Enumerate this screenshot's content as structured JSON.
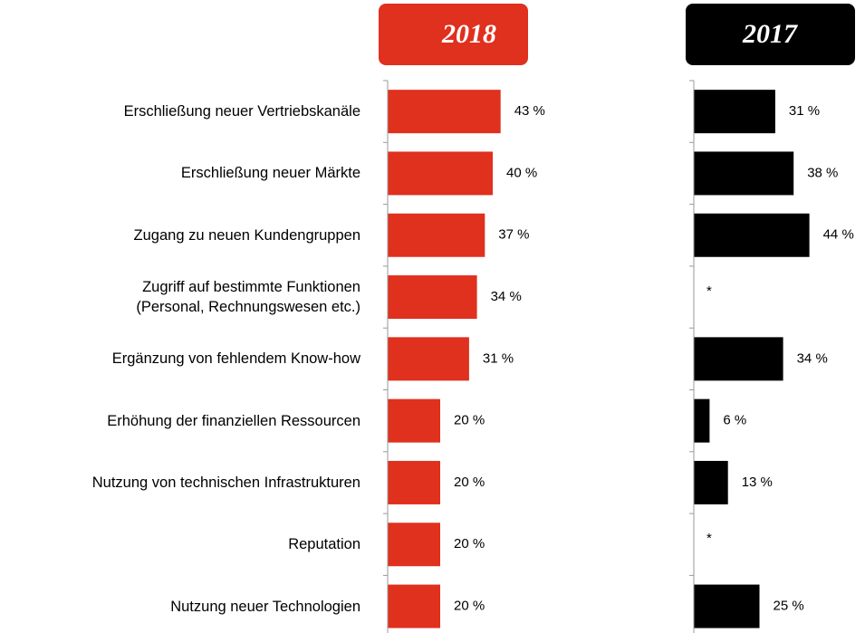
{
  "chart_data": [
    {
      "type": "bar",
      "title": "2018",
      "color": "#e0301e",
      "categories": [
        "Erschließung neuer Vertriebskanäle",
        "Erschließung neuer Märkte",
        "Zugang zu neuen Kundengruppen",
        "Zugriff auf bestimmte Funktionen\n(Personal, Rechnungswesen etc.)",
        "Ergänzung von fehlendem Know-how",
        "Erhöhung der finanziellen Ressourcen",
        "Nutzung von technischen Infrastrukturen",
        "Reputation",
        "Nutzung neuer Technologien"
      ],
      "values": [
        43,
        40,
        37,
        34,
        31,
        20,
        20,
        20,
        20
      ],
      "value_labels": [
        "43 %",
        "40 %",
        "37 %",
        "34 %",
        "31 %",
        "20 %",
        "20 %",
        "20 %",
        "20 %"
      ]
    },
    {
      "type": "bar",
      "title": "2017",
      "color": "#000000",
      "values": [
        31,
        38,
        44,
        null,
        34,
        6,
        13,
        null,
        25
      ],
      "value_labels": [
        "31 %",
        "38 %",
        "44 %",
        "*",
        "34 %",
        "6 %",
        "13 %",
        "*",
        "25 %"
      ]
    }
  ]
}
